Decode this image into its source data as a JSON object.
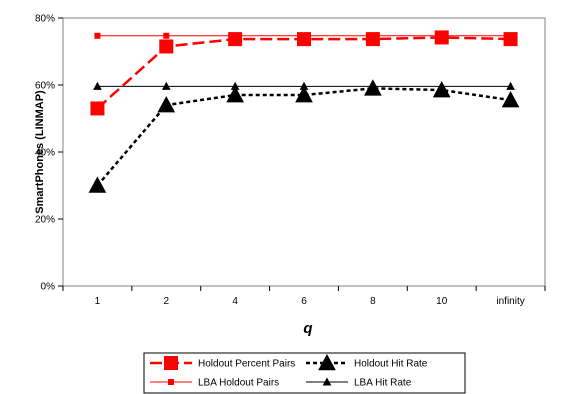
{
  "chart_data": {
    "type": "line",
    "xlabel": "q",
    "ylabel": "SmartPhones (LINMAP)",
    "categories": [
      "1",
      "2",
      "4",
      "6",
      "8",
      "10",
      "infinity"
    ],
    "ylim": [
      0,
      0.8
    ],
    "yticks": [
      "0%",
      "20%",
      "40%",
      "60%",
      "80%"
    ],
    "grid": false,
    "legend_position": "bottom",
    "series": [
      {
        "name": "Holdout Percent Pairs",
        "values": [
          0.53,
          0.715,
          0.737,
          0.737,
          0.737,
          0.742,
          0.737
        ],
        "color": "#ff0000",
        "line_style": "dashed",
        "marker": "square",
        "marker_size": "large"
      },
      {
        "name": "Holdout Hit Rate",
        "values": [
          0.3,
          0.54,
          0.57,
          0.57,
          0.59,
          0.585,
          0.555
        ],
        "color": "#000000",
        "line_style": "dotted",
        "marker": "triangle",
        "marker_size": "large"
      },
      {
        "name": "LBA Holdout Pairs",
        "values": [
          0.747,
          0.747,
          0.747,
          0.747,
          0.747,
          0.747,
          0.747
        ],
        "color": "#ff0000",
        "line_style": "solid",
        "marker": "square",
        "marker_size": "small"
      },
      {
        "name": "LBA Hit Rate",
        "values": [
          0.596,
          0.596,
          0.596,
          0.596,
          0.596,
          0.596,
          0.596
        ],
        "color": "#000000",
        "line_style": "solid",
        "marker": "triangle",
        "marker_size": "small"
      }
    ]
  }
}
